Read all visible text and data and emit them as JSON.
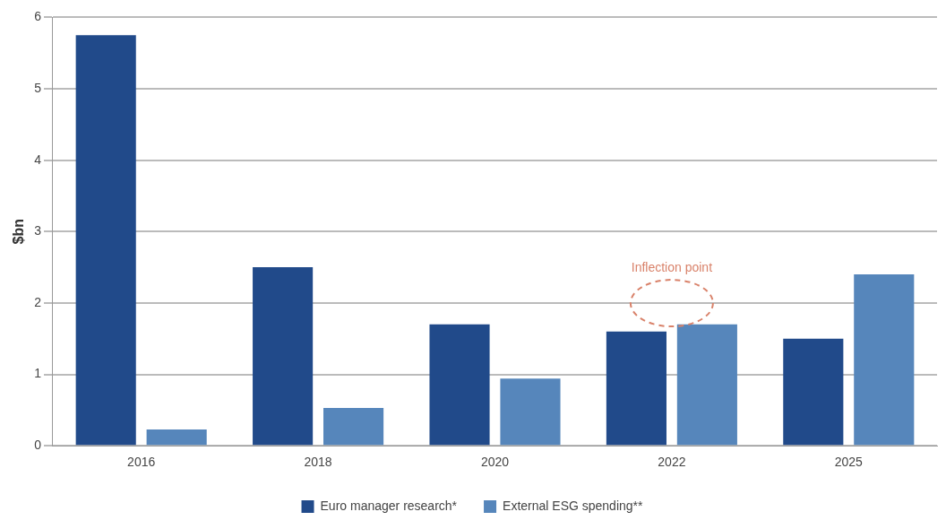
{
  "chart_data": {
    "type": "bar",
    "ylabel": "$bn",
    "categories": [
      "2016",
      "2018",
      "2020",
      "2022",
      "2025"
    ],
    "series": [
      {
        "name": "Euro manager research*",
        "color": "#214a8a",
        "values": [
          5.75,
          2.5,
          1.7,
          1.6,
          1.5
        ]
      },
      {
        "name": "External ESG spending**",
        "color": "#5686bb",
        "values": [
          0.23,
          0.53,
          0.94,
          1.7,
          2.4
        ]
      }
    ],
    "ylim": [
      0,
      6
    ],
    "yticks": [
      0,
      1,
      2,
      3,
      4,
      5,
      6
    ],
    "grid": "y",
    "legend": "bottom",
    "annotations": [
      "Inflection point"
    ]
  }
}
